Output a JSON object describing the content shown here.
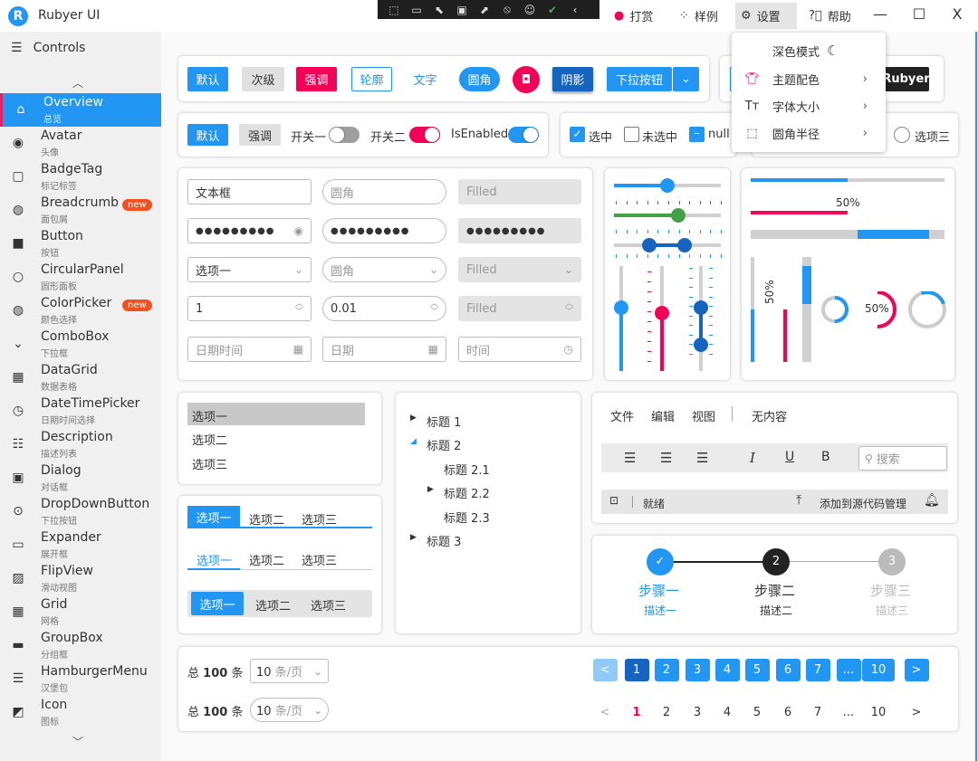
{
  "app": {
    "title": "Rubyer UI",
    "logo_letter": "R"
  },
  "devtools": {
    "icons": [
      "select-element-icon",
      "display-layout-icon",
      "pointer-icon",
      "frame-icon",
      "pointer-select-icon",
      "hot-reload-icon",
      "accessibility-icon",
      "check-status-icon",
      "collapse-icon"
    ]
  },
  "titlebar": {
    "reward": "打赏",
    "samples": "样例",
    "settings": "设置",
    "help": "帮助",
    "minimize": "—",
    "maximize": "☐",
    "close": "X"
  },
  "settings_menu": {
    "dark_mode": "深色模式",
    "theme_color": "主题配色",
    "font_size": "字体大小",
    "corner_radius": "圆角半径"
  },
  "sidebar": {
    "header": "Controls",
    "items": [
      {
        "label": "Overview",
        "sub": "总览",
        "icon": "⌂",
        "selected": true
      },
      {
        "label": "Avatar",
        "sub": "头像",
        "icon": "◉"
      },
      {
        "label": "BadgeTag",
        "sub": "标记标签",
        "icon": "▢"
      },
      {
        "label": "Breadcrumb",
        "sub": "面包屑",
        "icon": "◍",
        "badge": "new"
      },
      {
        "label": "Button",
        "sub": "按钮",
        "icon": "■"
      },
      {
        "label": "CircularPanel",
        "sub": "圆形面板",
        "icon": "○"
      },
      {
        "label": "ColorPicker",
        "sub": "颜色选择",
        "icon": "◍",
        "badge": "new"
      },
      {
        "label": "ComboBox",
        "sub": "下拉框",
        "icon": "⌄"
      },
      {
        "label": "DataGrid",
        "sub": "数据表格",
        "icon": "▦"
      },
      {
        "label": "DateTimePicker",
        "sub": "日期时间选择",
        "icon": "◷"
      },
      {
        "label": "Description",
        "sub": "描述列表",
        "icon": "☷"
      },
      {
        "label": "Dialog",
        "sub": "对话框",
        "icon": "▣"
      },
      {
        "label": "DropDownButton",
        "sub": "下拉按钮",
        "icon": "⊙"
      },
      {
        "label": "Expander",
        "sub": "展开框",
        "icon": "▭"
      },
      {
        "label": "FlipView",
        "sub": "滑动视图",
        "icon": "▨"
      },
      {
        "label": "Grid",
        "sub": "网格",
        "icon": "▦"
      },
      {
        "label": "GroupBox",
        "sub": "分组框",
        "icon": "▬"
      },
      {
        "label": "HamburgerMenu",
        "sub": "汉堡包",
        "icon": "☰"
      },
      {
        "label": "Icon",
        "sub": "图标",
        "icon": "◩"
      }
    ]
  },
  "buttons": {
    "default": "默认",
    "secondary": "次级",
    "accent": "强调",
    "outline": "轮廓",
    "text": "文字",
    "rounded": "圆角",
    "shadow": "阴影",
    "dropdown": "下拉按钮",
    "rubyer": "Rubyer"
  },
  "row2": {
    "default": "默认",
    "accent": "强调",
    "switch1": "开关一",
    "switch2": "开关二",
    "enabled": "IsEnabled",
    "switch1_on": false,
    "switch2_on": true,
    "enabled_on": true
  },
  "checks": {
    "checked": "选中",
    "unchecked": "未选中",
    "null": "null",
    "radio3": "选项三"
  },
  "inputs": {
    "text": [
      "文本框",
      "圆角",
      "Filled"
    ],
    "password": "●●●●●●●●●",
    "combo": [
      "选项一",
      "圆角",
      "Filled"
    ],
    "numeric": [
      "1",
      "0.01",
      "Filled"
    ],
    "date": [
      "日期时间",
      "日期",
      "时间"
    ]
  },
  "sliders": {
    "h1": 0.5,
    "h2": 0.6,
    "range": [
      0.33,
      0.66
    ],
    "v1": 0.6,
    "v2": 0.55,
    "vrange": [
      0.25,
      0.6
    ]
  },
  "progress": {
    "p1": 0.5,
    "p2": 0.5,
    "p2_label": "50%",
    "buffer": [
      0.55,
      0.92
    ],
    "v1": 0.5,
    "v2": 0.5,
    "v2_label": "50%",
    "ring2_label": "50%"
  },
  "list": {
    "items": [
      "选项一",
      "选项二",
      "选项三"
    ],
    "selected": 0
  },
  "tabs": {
    "items": [
      "选项一",
      "选项二",
      "选项三"
    ],
    "selected": 0
  },
  "tree": {
    "n1": "标题 1",
    "n2": "标题 2",
    "n21": "标题 2.1",
    "n22": "标题 2.2",
    "n23": "标题 2.3",
    "n3": "标题 3"
  },
  "editor": {
    "menu": [
      "文件",
      "编辑",
      "视图"
    ],
    "no_content": "无内容",
    "search_placeholder": "搜索",
    "status": "就绪",
    "source_control": "添加到源代码管理"
  },
  "stepper": {
    "steps": [
      {
        "title": "步骤一",
        "desc": "描述一",
        "state": "done"
      },
      {
        "title": "步骤二",
        "desc": "描述二",
        "num": "2",
        "state": "current"
      },
      {
        "title": "步骤三",
        "desc": "描述三",
        "num": "3",
        "state": "pending"
      }
    ]
  },
  "pagination": {
    "total_prefix": "总",
    "total": "100",
    "total_suffix": "条",
    "page_size": "10",
    "page_size_unit": "条/页",
    "pages": [
      "<",
      "1",
      "2",
      "3",
      "4",
      "5",
      "6",
      "7",
      "...",
      "10",
      ">"
    ],
    "current": "1"
  },
  "colors": {
    "primary": "#2196f3",
    "accent": "#f50057",
    "dark": "#1565c0",
    "green": "#43a047"
  }
}
